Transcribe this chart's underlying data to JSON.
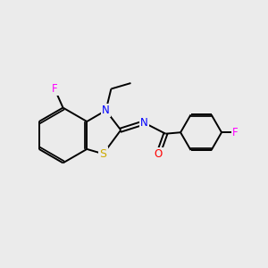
{
  "bg_color": "#ebebeb",
  "atom_colors": {
    "C": "#000000",
    "N": "#0000ff",
    "O": "#ff0000",
    "S": "#ccaa00",
    "F": "#ff00ff"
  },
  "bond_color": "#000000",
  "figsize": [
    3.0,
    3.0
  ],
  "dpi": 100,
  "lw": 1.4,
  "fs": 8.5
}
